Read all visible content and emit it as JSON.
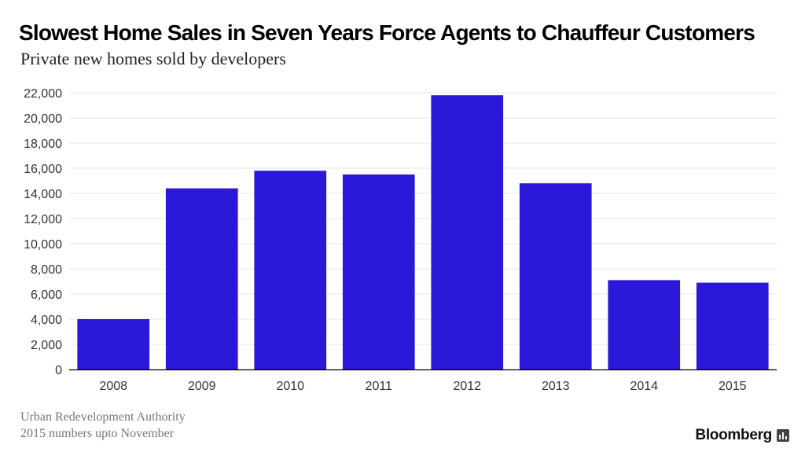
{
  "header": {
    "title": "Slowest Home Sales in Seven Years Force Agents to Chauffeur Customers",
    "subtitle": "Private new homes sold by developers"
  },
  "footer": {
    "source": "Urban Redevelopment Authority",
    "note": "2015 numbers upto November",
    "brand": "Bloomberg",
    "brand_icon": "bloomberg-chart-icon"
  },
  "colors": {
    "bar": "#2a17d8",
    "grid": "#e6e6e6",
    "axis": "#000000"
  },
  "chart_data": {
    "type": "bar",
    "title": "Slowest Home Sales in Seven Years Force Agents to Chauffeur Customers",
    "subtitle": "Private new homes sold by developers",
    "categories": [
      "2008",
      "2009",
      "2010",
      "2011",
      "2012",
      "2013",
      "2014",
      "2015"
    ],
    "values": [
      4000,
      14400,
      15800,
      15500,
      21800,
      14800,
      7100,
      6900
    ],
    "ylim": [
      0,
      22000
    ],
    "yticks": [
      0,
      2000,
      4000,
      6000,
      8000,
      10000,
      12000,
      14000,
      16000,
      18000,
      20000,
      22000
    ],
    "ytick_labels": [
      "0",
      "2,000",
      "4,000",
      "6,000",
      "8,000",
      "10,000",
      "12,000",
      "14,000",
      "16,000",
      "18,000",
      "20,000",
      "22,000"
    ],
    "grid": true,
    "legend": "none"
  }
}
